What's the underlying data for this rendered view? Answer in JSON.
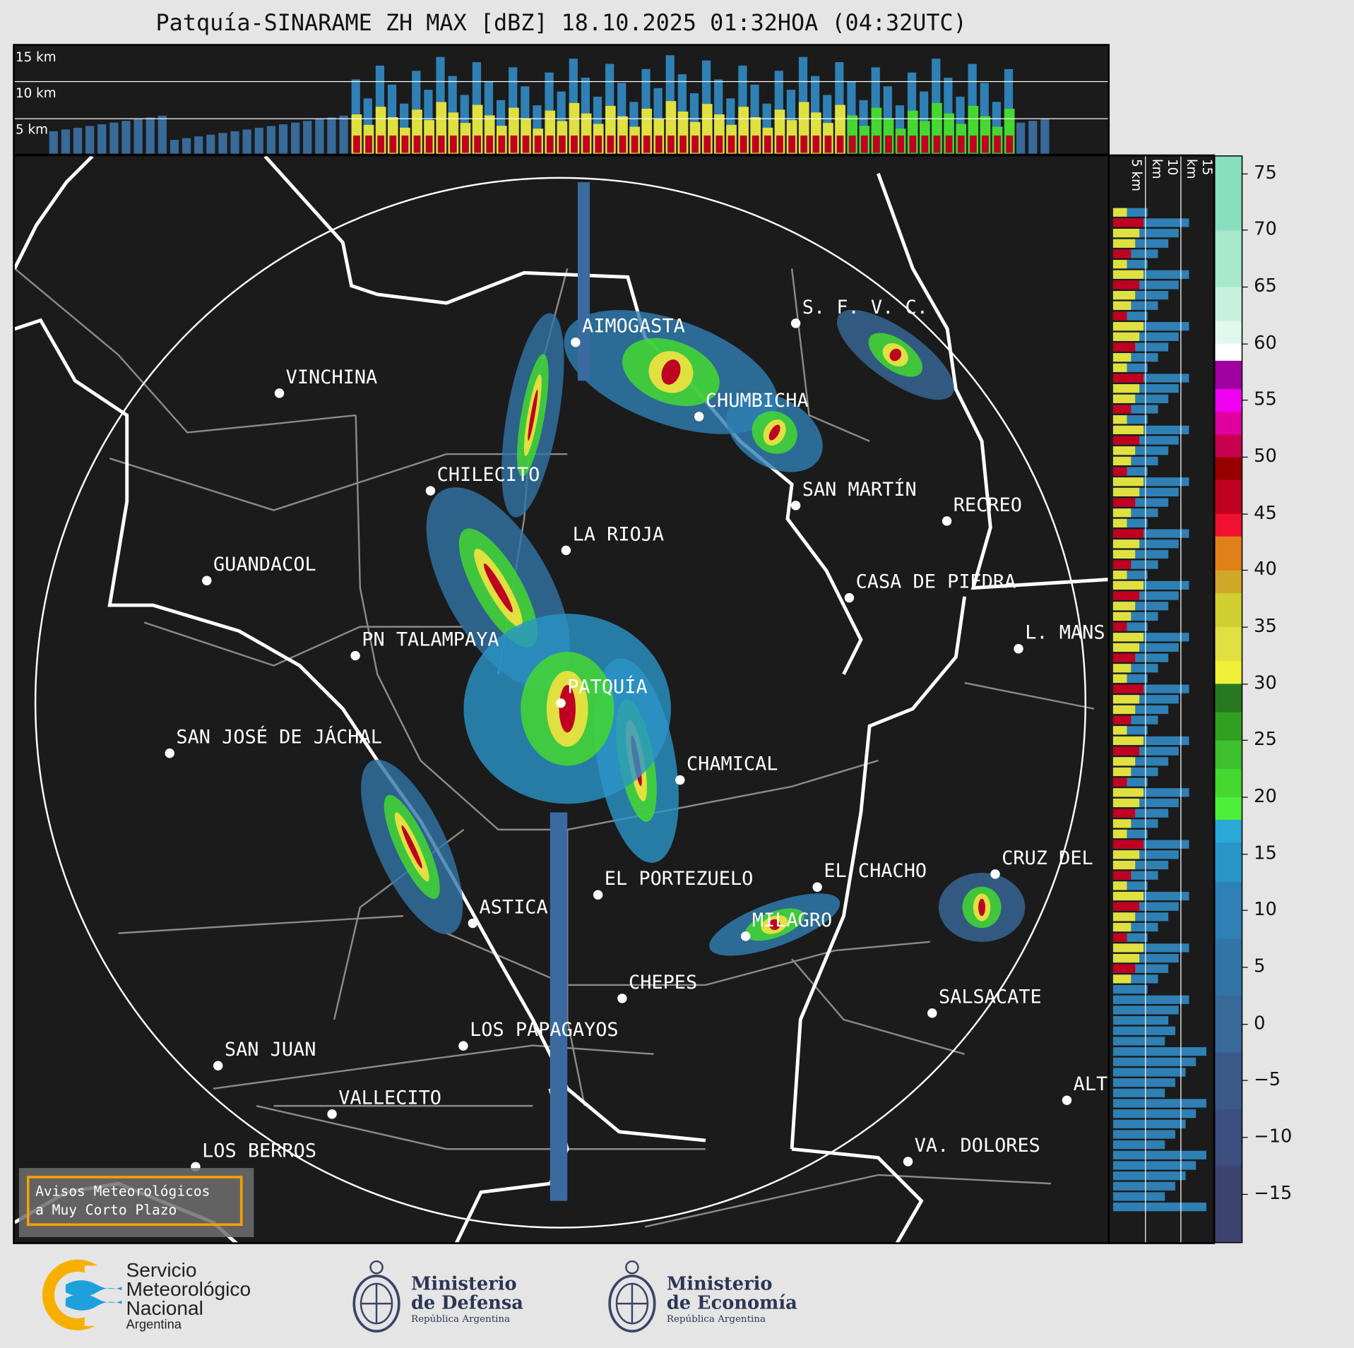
{
  "title": "Patquía-SINARAME ZH MAX [dBZ] 18.10.2025 01:32HOA (04:32UTC)",
  "top_section": {
    "labels": [
      "15 km",
      "10 km",
      "5 km"
    ]
  },
  "side_section": {
    "labels": [
      "5 km",
      "10 km",
      "15 km"
    ]
  },
  "cities": [
    {
      "name": "AIMOGASTA",
      "dot": [
        665,
        395
      ]
    },
    {
      "name": "VINCHINA",
      "dot": [
        322,
        454
      ]
    },
    {
      "name": "CHUMBICHA",
      "dot": [
        808,
        481
      ]
    },
    {
      "name": "S. F. V. C.",
      "dot": [
        920,
        373
      ]
    },
    {
      "name": "CHILECITO",
      "dot": [
        497,
        567
      ]
    },
    {
      "name": "SAN MARTÍN",
      "dot": [
        920,
        584
      ]
    },
    {
      "name": "RECREO",
      "dot": [
        1095,
        602
      ]
    },
    {
      "name": "LA RIOJA",
      "dot": [
        654,
        636
      ]
    },
    {
      "name": "GUANDACOL",
      "dot": [
        238,
        671
      ]
    },
    {
      "name": "CASA DE PIEDRA",
      "dot": [
        982,
        691
      ]
    },
    {
      "name": "PN TALAMPAYA",
      "dot": [
        410,
        758
      ]
    },
    {
      "name": "L. MANS",
      "dot": [
        1178,
        750
      ]
    },
    {
      "name": "PATQUÍA",
      "dot": [
        648,
        813
      ]
    },
    {
      "name": "SAN JOSÉ DE JÁCHAL",
      "dot": [
        195,
        871
      ]
    },
    {
      "name": "CHAMICAL",
      "dot": [
        786,
        902
      ]
    },
    {
      "name": "EL CHACHO",
      "dot": [
        945,
        1026
      ]
    },
    {
      "name": "CRUZ DEL",
      "dot": [
        1151,
        1011
      ]
    },
    {
      "name": "EL PORTEZUELO",
      "dot": [
        691,
        1035
      ]
    },
    {
      "name": "ASTICA",
      "dot": [
        546,
        1068
      ]
    },
    {
      "name": "MILAGRO",
      "dot": [
        862,
        1083
      ]
    },
    {
      "name": "CHEPES",
      "dot": [
        719,
        1155
      ]
    },
    {
      "name": "SALSACATE",
      "dot": [
        1078,
        1172
      ]
    },
    {
      "name": "LOS PAPAGAYOS",
      "dot": [
        535,
        1210
      ]
    },
    {
      "name": "SAN JUAN",
      "dot": [
        251,
        1233
      ]
    },
    {
      "name": "ALT",
      "dot": [
        1234,
        1273
      ]
    },
    {
      "name": "VALLECITO",
      "dot": [
        383,
        1289
      ]
    },
    {
      "name": "VA. DOLORES",
      "dot": [
        1050,
        1344
      ]
    },
    {
      "name": "LOS BERROS",
      "dot": [
        225,
        1350
      ]
    }
  ],
  "colorbar": {
    "unit": "dBZ",
    "range": [
      -19.3,
      76.5
    ],
    "ticks": [
      "75",
      "70",
      "65",
      "60",
      "55",
      "50",
      "45",
      "40",
      "35",
      "30",
      "25",
      "20",
      "15",
      "10",
      "5",
      "0",
      "−5",
      "−10",
      "−15"
    ],
    "tick_values": [
      75,
      70,
      65,
      60,
      55,
      50,
      45,
      40,
      35,
      30,
      25,
      20,
      15,
      10,
      5,
      0,
      -5,
      -10,
      -15
    ],
    "segments": [
      {
        "from": -19.3,
        "to": -12.5,
        "color": "#3e4470"
      },
      {
        "from": -12.5,
        "to": -7.5,
        "color": "#3d4f80"
      },
      {
        "from": -7.5,
        "to": -2.5,
        "color": "#3b5a8a"
      },
      {
        "from": -2.5,
        "to": 2.5,
        "color": "#386a9a"
      },
      {
        "from": 2.5,
        "to": 7.5,
        "color": "#3274a6"
      },
      {
        "from": 7.5,
        "to": 12.5,
        "color": "#2f80b4"
      },
      {
        "from": 12.5,
        "to": 16,
        "color": "#2a95c8"
      },
      {
        "from": 16,
        "to": 18,
        "color": "#2aa8d8"
      },
      {
        "from": 18,
        "to": 20,
        "color": "#4cf038"
      },
      {
        "from": 20,
        "to": 22.5,
        "color": "#44d830"
      },
      {
        "from": 22.5,
        "to": 25,
        "color": "#3cc030"
      },
      {
        "from": 25,
        "to": 27.5,
        "color": "#30a020"
      },
      {
        "from": 27.5,
        "to": 30,
        "color": "#287820"
      },
      {
        "from": 30,
        "to": 32,
        "color": "#f0f038"
      },
      {
        "from": 32,
        "to": 35,
        "color": "#e0e040"
      },
      {
        "from": 35,
        "to": 38,
        "color": "#d0d030"
      },
      {
        "from": 38,
        "to": 40,
        "color": "#d0a828"
      },
      {
        "from": 40,
        "to": 43,
        "color": "#e08018"
      },
      {
        "from": 43,
        "to": 45,
        "color": "#f01030"
      },
      {
        "from": 45,
        "to": 48,
        "color": "#c00020"
      },
      {
        "from": 48,
        "to": 50,
        "color": "#980000"
      },
      {
        "from": 50,
        "to": 52,
        "color": "#c80050"
      },
      {
        "from": 52,
        "to": 54,
        "color": "#e000a0"
      },
      {
        "from": 54,
        "to": 56,
        "color": "#f000f0"
      },
      {
        "from": 56,
        "to": 58.5,
        "color": "#a000a0"
      },
      {
        "from": 58.5,
        "to": 60,
        "color": "#ffffff"
      },
      {
        "from": 60,
        "to": 62,
        "color": "#e0f8ee"
      },
      {
        "from": 62,
        "to": 65,
        "color": "#c8f0de"
      },
      {
        "from": 65,
        "to": 70,
        "color": "#a8e8cc"
      },
      {
        "from": 70,
        "to": 76.5,
        "color": "#88dfbf"
      }
    ]
  },
  "avisos": {
    "line1": "Avisos Meteorológicos",
    "line2": "a Muy Corto Plazo"
  },
  "logos": {
    "smn": {
      "l1": "Servicio",
      "l2": "Meteorológico",
      "l3": "Nacional",
      "l4": "Argentina"
    },
    "defensa": {
      "l1": "Ministerio",
      "l2": "de Defensa",
      "l3": "República Argentina"
    },
    "economia": {
      "l1": "Ministerio",
      "l2": "de Economía",
      "l3": "República Argentina"
    }
  }
}
